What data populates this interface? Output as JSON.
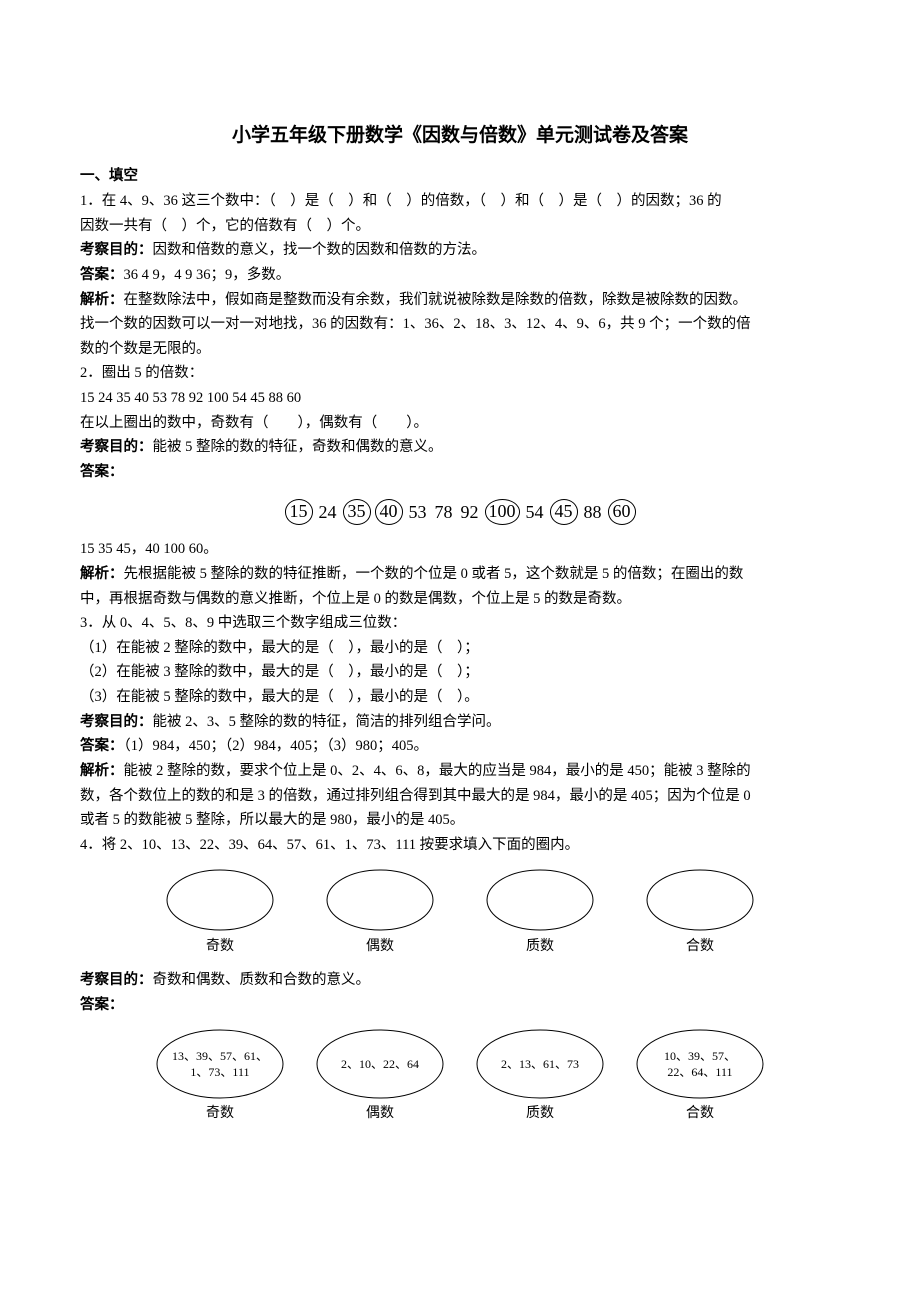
{
  "title": "小学五年级下册数学《因数与倍数》单元测试卷及答案",
  "section1": "一、填空",
  "q1": {
    "line1": "1．在 4、9、36 这三个数中：（　）是（　）和（　）的倍数，（　）和（　）是（　）的因数；36 的",
    "line2": "因数一共有（　）个，它的倍数有（　）个。",
    "goal_label": "考察目的：",
    "goal": "因数和倍数的意义，找一个数的因数和倍数的方法。",
    "ans_label": "答案：",
    "ans": "36 4 9，4 9 36；9，多数。",
    "exp_label": "解析：",
    "exp1": "在整数除法中，假如商是整数而没有余数，我们就说被除数是除数的倍数，除数是被除数的因数。",
    "exp2": "找一个数的因数可以一对一对地找，36 的因数有：1、36、2、18、3、12、4、9、6，共 9 个；一个数的倍",
    "exp3": "数的个数是无限的。"
  },
  "q2": {
    "line1": "2．圈出 5 的倍数：",
    "numbers_plain": "15  24  35  40  53  78  92  100  54  45  88  60",
    "line3": "在以上圈出的数中，奇数有（　　），偶数有（　　）。",
    "goal_label": "考察目的：",
    "goal": "能被 5 整除的数的特征，奇数和偶数的意义。",
    "ans_label": "答案：",
    "numbers": [
      "15",
      "24",
      "35",
      "40",
      "53",
      "78",
      "92",
      "100",
      "54",
      "45",
      "88",
      "60"
    ],
    "circled_flags": [
      true,
      false,
      true,
      true,
      false,
      false,
      false,
      true,
      false,
      true,
      false,
      true
    ],
    "circled_fontsize": 18,
    "circled_border_color": "#000000",
    "ans2": "15 35 45，40 100 60。",
    "exp_label": "解析：",
    "exp1": "先根据能被 5 整除的数的特征推断，一个数的个位是 0 或者 5，这个数就是 5 的倍数；在圈出的数",
    "exp2": "中，再根据奇数与偶数的意义推断，个位上是 0 的数是偶数，个位上是 5 的数是奇数。"
  },
  "q3": {
    "line1": "3．从 0、4、5、8、9 中选取三个数字组成三位数：",
    "sub1": "（1）在能被 2 整除的数中，最大的是（　），最小的是（　）；",
    "sub2": "（2）在能被 3 整除的数中，最大的是（　），最小的是（　）；",
    "sub3": "（3）在能被 5 整除的数中，最大的是（　），最小的是（　）。",
    "goal_label": "考察目的：",
    "goal": "能被 2、3、5 整除的数的特征，简洁的排列组合学问。",
    "ans_label": "答案：",
    "ans": "（1）984，450；（2）984，405；（3）980；405。",
    "exp_label": "解析：",
    "exp1": "能被 2 整除的数，要求个位上是 0、2、4、6、8，最大的应当是 984，最小的是 450；能被 3 整除的",
    "exp2": "数，各个数位上的数的和是 3 的倍数，通过排列组合得到其中最大的是 984，最小的是 405；因为个位是 0",
    "exp3": "或者 5 的数能被 5 整除，所以最大的是 980，最小的是 405。"
  },
  "q4": {
    "line1": "4．将 2、10、13、22、39、64、57、61、1、73、111 按要求填入下面的圈内。",
    "empty_labels": [
      "奇数",
      "偶数",
      "质数",
      "合数"
    ],
    "goal_label": "考察目的：",
    "goal": "奇数和偶数、质数和合数的意义。",
    "ans_label": "答案：",
    "filled": [
      {
        "label": "奇数",
        "lines": [
          "13、39、57、61、",
          "1、73、111"
        ]
      },
      {
        "label": "偶数",
        "lines": [
          "2、10、22、64"
        ]
      },
      {
        "label": "质数",
        "lines": [
          "2、13、61、73"
        ]
      },
      {
        "label": "合数",
        "lines": [
          "10、39、57、",
          "22、64、111"
        ]
      }
    ],
    "oval_stroke": "#000000",
    "oval_fill": "none"
  }
}
